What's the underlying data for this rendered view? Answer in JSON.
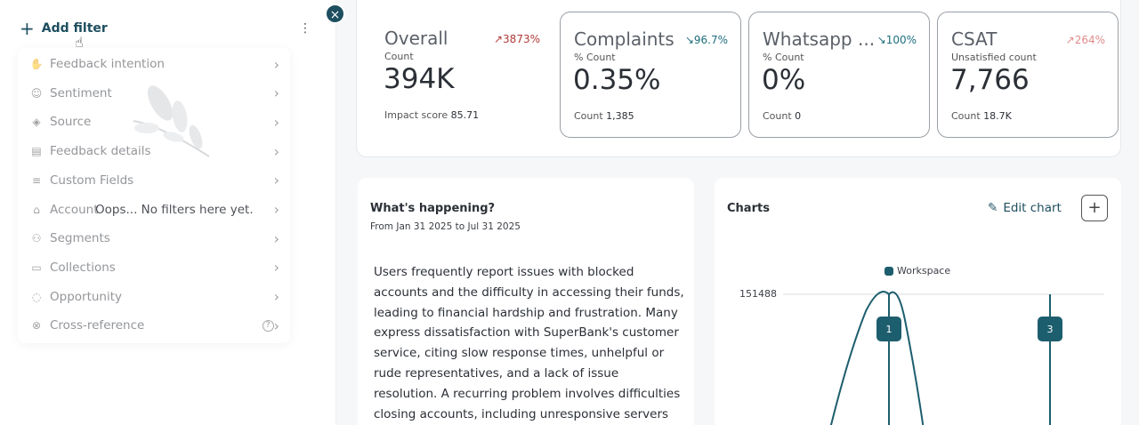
{
  "filters": {
    "add_label": "Add filter",
    "items": [
      {
        "label": "Feedback intention",
        "icon": "hand-icon"
      },
      {
        "label": "Sentiment",
        "icon": "smiley-icon"
      },
      {
        "label": "Source",
        "icon": "layers-icon"
      },
      {
        "label": "Feedback details",
        "icon": "document-icon"
      },
      {
        "label": "Custom Fields",
        "icon": "custom-fields-icon"
      },
      {
        "label": "Account",
        "icon": "bank-icon"
      },
      {
        "label": "Segments",
        "icon": "people-icon"
      },
      {
        "label": "Collections",
        "icon": "folder-icon"
      },
      {
        "label": "Opportunity",
        "icon": "bulb-icon"
      },
      {
        "label": "Cross-reference",
        "icon": "cross-reference-icon"
      }
    ],
    "empty_message": "Oops... No filters here yet."
  },
  "stats": [
    {
      "title": "Overall",
      "subtitle": "Count",
      "value": "394K",
      "foot_label": "Impact score",
      "foot_value": "85.71",
      "trend": "3873%",
      "trend_color": "#b23a3a",
      "trend_arrow": "↗",
      "bordered": false
    },
    {
      "title": "Complaints",
      "subtitle": "% Count",
      "value": "0.35%",
      "foot_label": "Count",
      "foot_value": "1,385",
      "trend": "96.7%",
      "trend_color": "#1d6e7e",
      "trend_arrow": "↘",
      "bordered": true
    },
    {
      "title": "Whatsapp ...",
      "subtitle": "% Count",
      "value": "0%",
      "foot_label": "Count",
      "foot_value": "0",
      "trend": "100%",
      "trend_color": "#1d6e7e",
      "trend_arrow": "↘",
      "bordered": true
    },
    {
      "title": "CSAT",
      "subtitle": "Unsatisfied count",
      "value": "7,766",
      "foot_label": "Count",
      "foot_value": "18.7K",
      "trend": "264%",
      "trend_color": "#e08a8a",
      "trend_arrow": "↗",
      "bordered": true
    }
  ],
  "happening": {
    "title": "What's happening?",
    "range": "From Jan 31 2025 to Jul 31 2025",
    "body": "Users frequently report issues with blocked accounts and the difficulty in accessing their funds, leading to financial hardship and frustration. Many express dissatisfaction with SuperBank's customer service, citing slow response times, unhelpful or rude representatives, and a lack of issue resolution. A recurring problem involves difficulties closing accounts, including unresponsive servers and failure"
  },
  "charts": {
    "title": "Charts",
    "edit_label": "Edit chart",
    "add_label": "+",
    "legend": "Workspace",
    "ytick": "151488",
    "markers": [
      "1",
      "3"
    ],
    "line_color": "#1d5e6e"
  },
  "close_label": "×"
}
